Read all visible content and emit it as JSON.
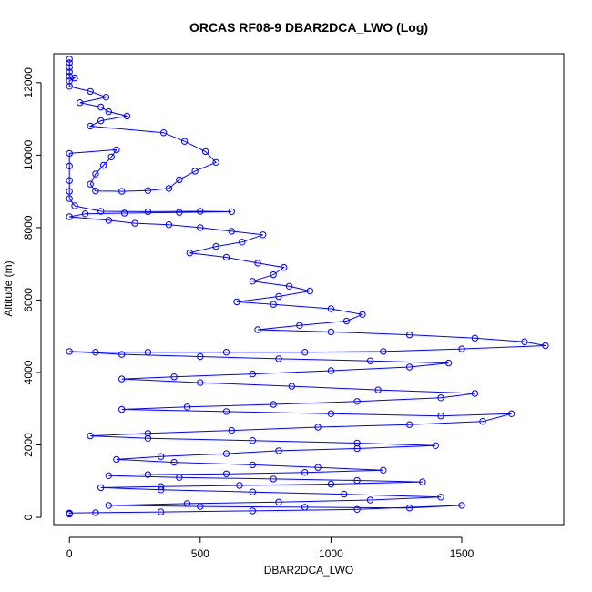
{
  "chart_data": {
    "type": "scatter",
    "title": "ORCAS RF08-9 DBAR2DCA_LWO (Log)",
    "xlabel": "DBAR2DCA_LWO",
    "ylabel": "Altitude (m)",
    "xlim": [
      -60,
      1890
    ],
    "ylim": [
      -200,
      12800
    ],
    "xticks": [
      0,
      500,
      1000,
      1500
    ],
    "yticks": [
      0,
      2000,
      4000,
      6000,
      8000,
      10000,
      12000
    ],
    "grid": false,
    "colors": {
      "series": "#0000ff",
      "axes": "#000000"
    },
    "series": [
      {
        "marker": "open-circle",
        "line": true,
        "points": [
          [
            0,
            12650
          ],
          [
            0,
            12550
          ],
          [
            0,
            12420
          ],
          [
            0,
            12300
          ],
          [
            0,
            12180
          ],
          [
            20,
            12130
          ],
          [
            0,
            12050
          ],
          [
            0,
            11900
          ],
          [
            80,
            11760
          ],
          [
            140,
            11600
          ],
          [
            40,
            11450
          ],
          [
            120,
            11330
          ],
          [
            150,
            11200
          ],
          [
            220,
            11080
          ],
          [
            120,
            10950
          ],
          [
            80,
            10800
          ],
          [
            360,
            10620
          ],
          [
            440,
            10380
          ],
          [
            520,
            10100
          ],
          [
            560,
            9800
          ],
          [
            480,
            9560
          ],
          [
            420,
            9320
          ],
          [
            380,
            9080
          ],
          [
            300,
            9020
          ],
          [
            200,
            9000
          ],
          [
            100,
            9010
          ],
          [
            80,
            9200
          ],
          [
            100,
            9480
          ],
          [
            130,
            9720
          ],
          [
            160,
            9950
          ],
          [
            180,
            10150
          ],
          [
            0,
            10050
          ],
          [
            0,
            9700
          ],
          [
            0,
            9300
          ],
          [
            0,
            9000
          ],
          [
            0,
            8800
          ],
          [
            20,
            8600
          ],
          [
            120,
            8450
          ],
          [
            300,
            8440
          ],
          [
            500,
            8450
          ],
          [
            620,
            8440
          ],
          [
            420,
            8420
          ],
          [
            210,
            8400
          ],
          [
            60,
            8380
          ],
          [
            0,
            8300
          ],
          [
            150,
            8200
          ],
          [
            250,
            8120
          ],
          [
            380,
            8080
          ],
          [
            500,
            8000
          ],
          [
            620,
            7900
          ],
          [
            740,
            7800
          ],
          [
            660,
            7600
          ],
          [
            560,
            7480
          ],
          [
            460,
            7300
          ],
          [
            600,
            7180
          ],
          [
            720,
            7020
          ],
          [
            820,
            6900
          ],
          [
            780,
            6700
          ],
          [
            700,
            6520
          ],
          [
            840,
            6380
          ],
          [
            920,
            6250
          ],
          [
            800,
            6100
          ],
          [
            640,
            5950
          ],
          [
            780,
            5880
          ],
          [
            1000,
            5760
          ],
          [
            1120,
            5600
          ],
          [
            1060,
            5420
          ],
          [
            880,
            5300
          ],
          [
            720,
            5180
          ],
          [
            1000,
            5120
          ],
          [
            1300,
            5040
          ],
          [
            1550,
            4950
          ],
          [
            1740,
            4850
          ],
          [
            1820,
            4740
          ],
          [
            1500,
            4650
          ],
          [
            1200,
            4580
          ],
          [
            900,
            4560
          ],
          [
            600,
            4560
          ],
          [
            300,
            4560
          ],
          [
            100,
            4560
          ],
          [
            0,
            4580
          ],
          [
            200,
            4500
          ],
          [
            500,
            4440
          ],
          [
            800,
            4380
          ],
          [
            1150,
            4320
          ],
          [
            1450,
            4260
          ],
          [
            1300,
            4150
          ],
          [
            1000,
            4050
          ],
          [
            700,
            3960
          ],
          [
            400,
            3880
          ],
          [
            200,
            3820
          ],
          [
            500,
            3720
          ],
          [
            850,
            3620
          ],
          [
            1180,
            3520
          ],
          [
            1550,
            3420
          ],
          [
            1420,
            3300
          ],
          [
            1100,
            3200
          ],
          [
            780,
            3120
          ],
          [
            450,
            3050
          ],
          [
            200,
            2980
          ],
          [
            600,
            2920
          ],
          [
            1000,
            2860
          ],
          [
            1420,
            2800
          ],
          [
            1690,
            2860
          ],
          [
            1580,
            2650
          ],
          [
            1300,
            2560
          ],
          [
            950,
            2490
          ],
          [
            620,
            2400
          ],
          [
            300,
            2320
          ],
          [
            80,
            2250
          ],
          [
            300,
            2180
          ],
          [
            700,
            2120
          ],
          [
            1100,
            2050
          ],
          [
            1400,
            1980
          ],
          [
            1100,
            1900
          ],
          [
            800,
            1840
          ],
          [
            600,
            1760
          ],
          [
            350,
            1680
          ],
          [
            180,
            1600
          ],
          [
            400,
            1520
          ],
          [
            700,
            1450
          ],
          [
            950,
            1380
          ],
          [
            1200,
            1300
          ],
          [
            900,
            1240
          ],
          [
            600,
            1200
          ],
          [
            300,
            1180
          ],
          [
            150,
            1150
          ],
          [
            420,
            1100
          ],
          [
            780,
            1060
          ],
          [
            1100,
            1020
          ],
          [
            1350,
            980
          ],
          [
            1000,
            920
          ],
          [
            650,
            880
          ],
          [
            350,
            850
          ],
          [
            120,
            820
          ],
          [
            350,
            760
          ],
          [
            700,
            700
          ],
          [
            1050,
            640
          ],
          [
            1420,
            560
          ],
          [
            1150,
            480
          ],
          [
            800,
            420
          ],
          [
            450,
            380
          ],
          [
            150,
            330
          ],
          [
            500,
            300
          ],
          [
            900,
            280
          ],
          [
            1300,
            260
          ],
          [
            1500,
            330
          ],
          [
            1100,
            220
          ],
          [
            700,
            180
          ],
          [
            350,
            150
          ],
          [
            100,
            130
          ],
          [
            0,
            120
          ],
          [
            0,
            100
          ],
          [
            0,
            90
          ]
        ]
      }
    ]
  }
}
